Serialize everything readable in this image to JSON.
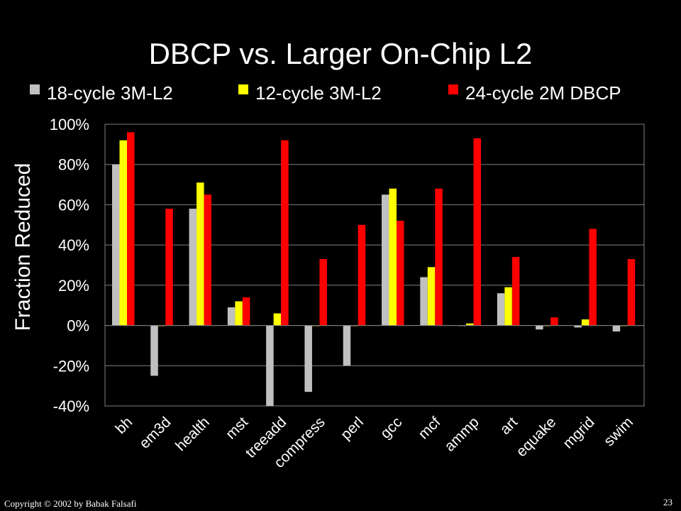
{
  "slide": {
    "title": "DBCP vs. Larger On-Chip L2",
    "copyright": "Copyright © 2002  by Babak Falsafi",
    "page_number": "23"
  },
  "chart_data": {
    "type": "bar",
    "title": "DBCP vs. Larger On-Chip L2",
    "ylabel": "Fraction Reduced",
    "xlabel": "",
    "ylim": [
      -40,
      100
    ],
    "yticks": [
      100,
      80,
      60,
      40,
      20,
      0,
      -20,
      -40
    ],
    "ytick_labels": [
      "100%",
      "80%",
      "60%",
      "40%",
      "20%",
      "0%",
      "-20%",
      "-40%"
    ],
    "grid": true,
    "legend_position": "top",
    "categories": [
      "bh",
      "em3d",
      "health",
      "mst",
      "treeadd",
      "compress",
      "perl",
      "gcc",
      "mcf",
      "ammp",
      "art",
      "equake",
      "mgrid",
      "swim"
    ],
    "series": [
      {
        "name": "18-cycle 3M-L2",
        "color": "#c0c0c0",
        "values": [
          80,
          -25,
          58,
          9,
          -40,
          -33,
          -20,
          65,
          24,
          0,
          16,
          -2,
          -1,
          -3
        ]
      },
      {
        "name": "12-cycle 3M-L2",
        "color": "#ffff00",
        "values": [
          92,
          0,
          71,
          12,
          6,
          0,
          0,
          68,
          29,
          1,
          19,
          0,
          3,
          0
        ]
      },
      {
        "name": "24-cycle 2M DBCP",
        "color": "#ff0000",
        "values": [
          96,
          58,
          65,
          14,
          92,
          33,
          50,
          52,
          68,
          93,
          34,
          4,
          48,
          33
        ]
      }
    ]
  }
}
